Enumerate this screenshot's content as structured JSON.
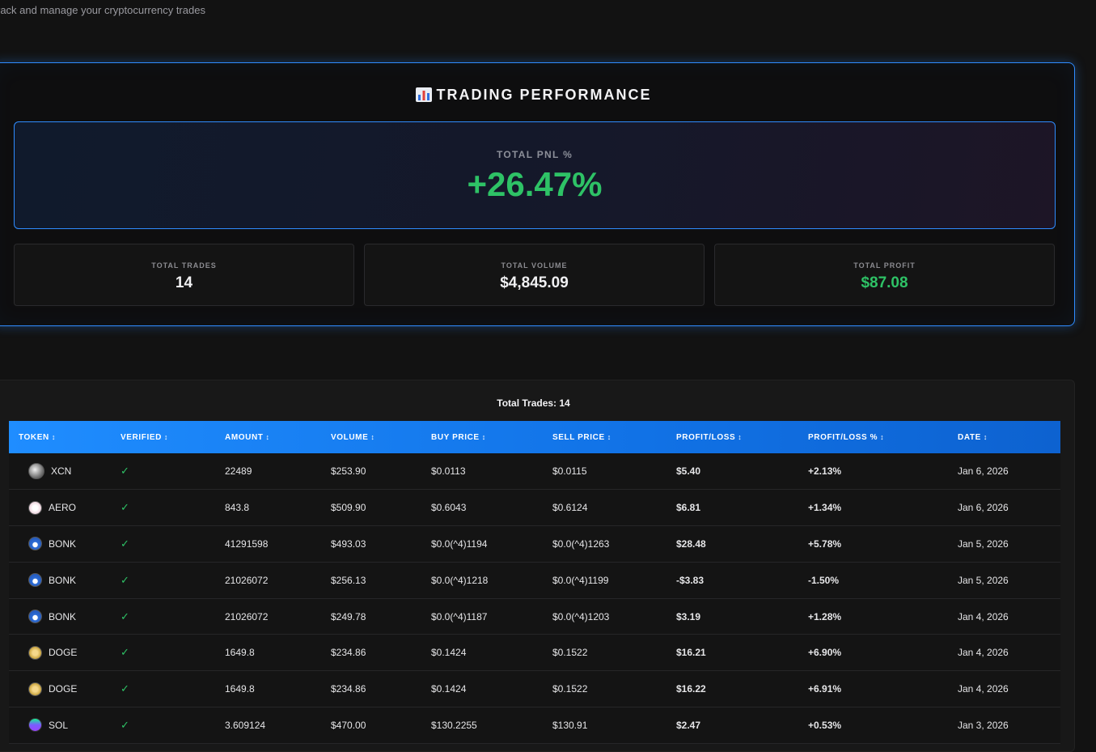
{
  "header": {
    "subtitle": "rack and manage your cryptocurrency trades"
  },
  "performance": {
    "title": "TRADING PERFORMANCE",
    "title_icon": "bar-chart-icon",
    "pnl_label": "TOTAL PNL %",
    "pnl_value": "+26.47%",
    "stats": [
      {
        "label": "TOTAL TRADES",
        "value": "14"
      },
      {
        "label": "TOTAL VOLUME",
        "value": "$4,845.09"
      },
      {
        "label": "TOTAL PROFIT",
        "value": "$87.08"
      }
    ]
  },
  "trades": {
    "count_label": "Total Trades: 14",
    "columns": [
      "TOKEN",
      "VERIFIED",
      "AMOUNT",
      "VOLUME",
      "BUY PRICE",
      "SELL PRICE",
      "PROFIT/LOSS",
      "PROFIT/LOSS %",
      "DATE"
    ],
    "sort_glyph": "↕",
    "check_glyph": "✓",
    "rows": [
      {
        "token": "XCN",
        "icon": "xcn-token-icon",
        "amount": "22489",
        "volume": "$253.90",
        "buy": "$0.0113",
        "sell": "$0.0115",
        "pl": "$5.40",
        "pl_pct": "+2.13%",
        "date": "Jan 6, 2026",
        "positive": true
      },
      {
        "token": "AERO",
        "icon": "aero-token-icon",
        "amount": "843.8",
        "volume": "$509.90",
        "buy": "$0.6043",
        "sell": "$0.6124",
        "pl": "$6.81",
        "pl_pct": "+1.34%",
        "date": "Jan 6, 2026",
        "positive": true
      },
      {
        "token": "BONK",
        "icon": "bonk-token-icon",
        "amount": "41291598",
        "volume": "$493.03",
        "buy": "$0.0(^4)1194",
        "sell": "$0.0(^4)1263",
        "pl": "$28.48",
        "pl_pct": "+5.78%",
        "date": "Jan 5, 2026",
        "positive": true
      },
      {
        "token": "BONK",
        "icon": "bonk-token-icon",
        "amount": "21026072",
        "volume": "$256.13",
        "buy": "$0.0(^4)1218",
        "sell": "$0.0(^4)1199",
        "pl": "-$3.83",
        "pl_pct": "-1.50%",
        "date": "Jan 5, 2026",
        "positive": false
      },
      {
        "token": "BONK",
        "icon": "bonk-token-icon",
        "amount": "21026072",
        "volume": "$249.78",
        "buy": "$0.0(^4)1187",
        "sell": "$0.0(^4)1203",
        "pl": "$3.19",
        "pl_pct": "+1.28%",
        "date": "Jan 4, 2026",
        "positive": true
      },
      {
        "token": "DOGE",
        "icon": "doge-token-icon",
        "amount": "1649.8",
        "volume": "$234.86",
        "buy": "$0.1424",
        "sell": "$0.1522",
        "pl": "$16.21",
        "pl_pct": "+6.90%",
        "date": "Jan 4, 2026",
        "positive": true
      },
      {
        "token": "DOGE",
        "icon": "doge-token-icon",
        "amount": "1649.8",
        "volume": "$234.86",
        "buy": "$0.1424",
        "sell": "$0.1522",
        "pl": "$16.22",
        "pl_pct": "+6.91%",
        "date": "Jan 4, 2026",
        "positive": true
      },
      {
        "token": "SOL",
        "icon": "sol-token-icon",
        "amount": "3.609124",
        "volume": "$470.00",
        "buy": "$130.2255",
        "sell": "$130.91",
        "pl": "$2.47",
        "pl_pct": "+0.53%",
        "date": "Jan 3, 2026",
        "positive": true
      }
    ]
  },
  "colors": {
    "accent": "#2f8cff",
    "positive": "#2ec266",
    "negative": "#ef3b3b",
    "background": "#121212"
  }
}
